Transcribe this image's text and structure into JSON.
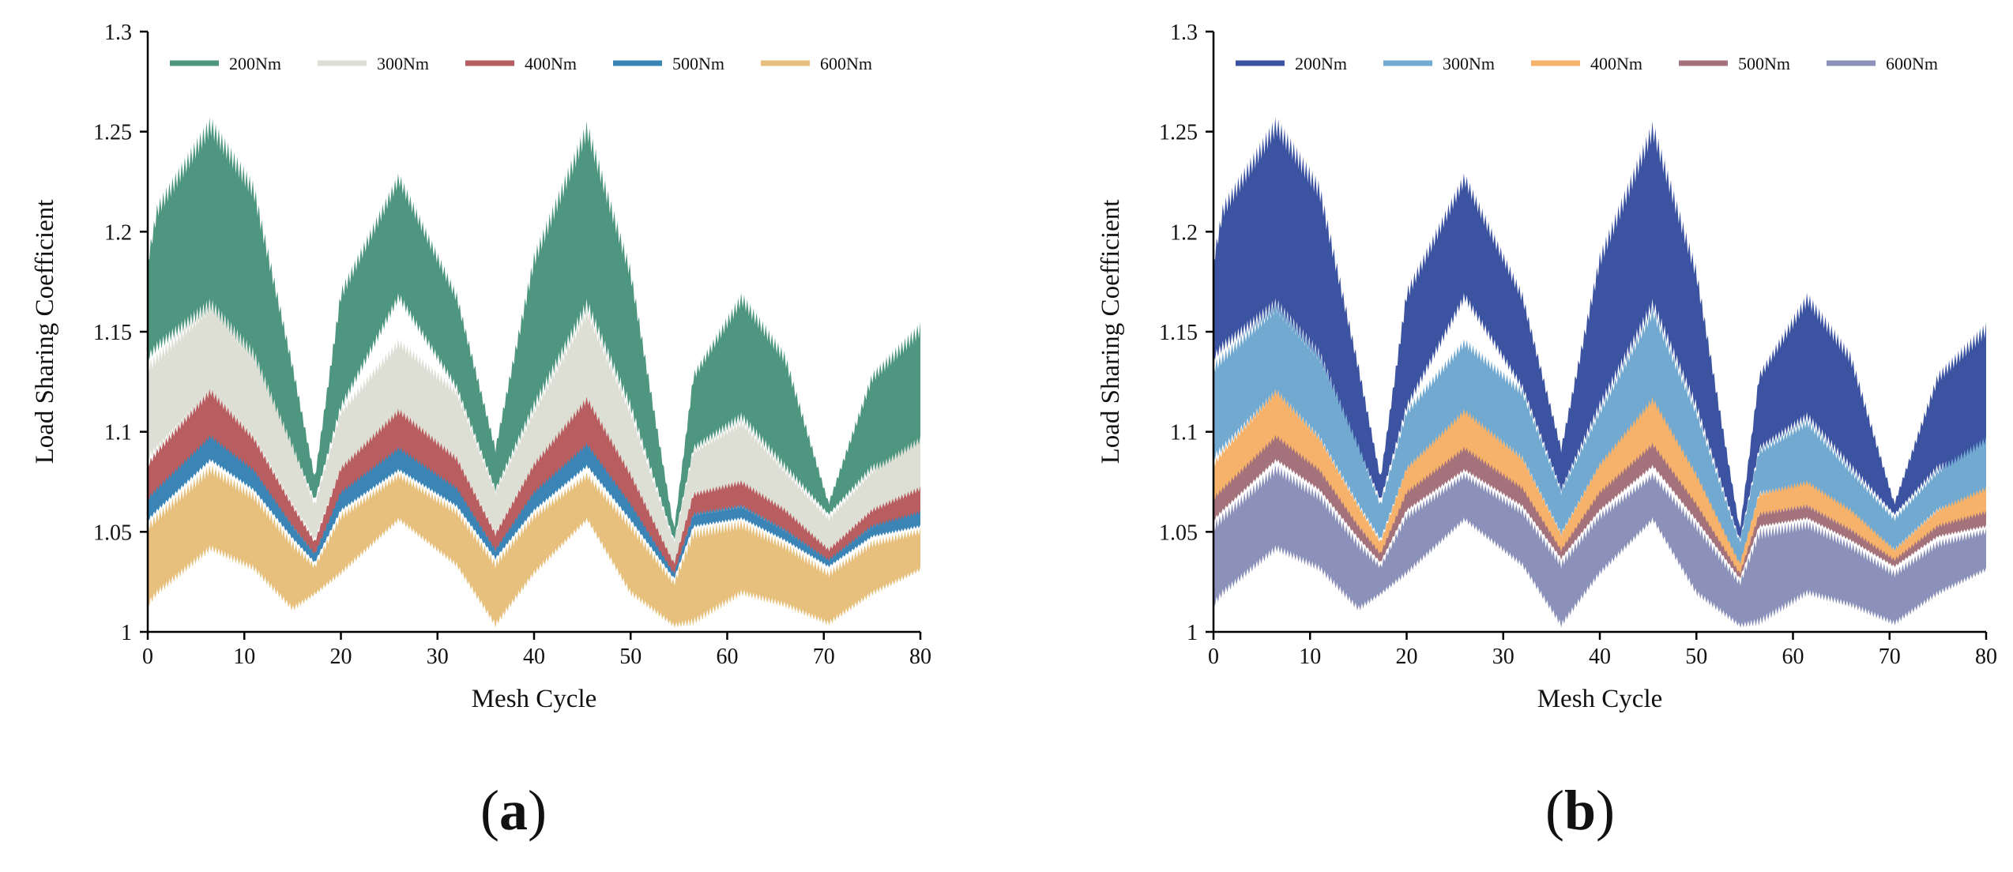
{
  "chart_data": [
    {
      "type": "area",
      "panel_label": "a",
      "xlabel": "Mesh Cycle",
      "ylabel": "Load Sharing Coefficient",
      "xlim": [
        0,
        80
      ],
      "ylim": [
        1,
        1.3
      ],
      "x_ticks": [
        "0",
        "10",
        "20",
        "30",
        "40",
        "50",
        "60",
        "70",
        "80"
      ],
      "y_ticks": [
        "1",
        "1.05",
        "1.1",
        "1.15",
        "1.2",
        "1.25",
        "1.3"
      ],
      "legend_position": "top",
      "bands": [
        {
          "name": "200Nm",
          "color": "#4e9680",
          "x": [
            0,
            1,
            6.5,
            11,
            15,
            17.3,
            20,
            26,
            32,
            36,
            40,
            45.5,
            50,
            54.5,
            56.5,
            61.5,
            66,
            70.5,
            75,
            80
          ],
          "upper": [
            1.188,
            1.215,
            1.258,
            1.225,
            1.135,
            1.078,
            1.172,
            1.23,
            1.17,
            1.093,
            1.19,
            1.256,
            1.183,
            1.052,
            1.13,
            1.17,
            1.14,
            1.065,
            1.13,
            1.155
          ],
          "lower": [
            1.135,
            1.14,
            1.16,
            1.135,
            1.09,
            1.065,
            1.11,
            1.165,
            1.12,
            1.07,
            1.11,
            1.16,
            1.11,
            1.045,
            1.09,
            1.105,
            1.08,
            1.058,
            1.08,
            1.085
          ]
        },
        {
          "name": "300Nm",
          "color": "#dddfd5",
          "x": [
            0,
            1,
            6.5,
            11,
            15,
            17.3,
            20,
            26,
            32,
            36,
            40,
            45.5,
            50,
            54.5,
            56.5,
            61.5,
            66,
            70.5,
            75,
            80
          ],
          "upper": [
            1.135,
            1.14,
            1.165,
            1.14,
            1.095,
            1.065,
            1.112,
            1.147,
            1.122,
            1.072,
            1.112,
            1.163,
            1.112,
            1.046,
            1.092,
            1.107,
            1.082,
            1.058,
            1.082,
            1.098
          ],
          "lower": [
            1.085,
            1.09,
            1.118,
            1.095,
            1.062,
            1.045,
            1.08,
            1.108,
            1.085,
            1.048,
            1.082,
            1.11,
            1.075,
            1.032,
            1.068,
            1.072,
            1.058,
            1.04,
            1.06,
            1.068
          ]
        },
        {
          "name": "400Nm",
          "color": "#b95e60",
          "x": [
            0,
            1,
            6.5,
            11,
            15,
            17.3,
            20,
            26,
            32,
            36,
            40,
            45.5,
            50,
            54.5,
            56.5,
            61.5,
            66,
            70.5,
            75,
            80
          ],
          "upper": [
            1.085,
            1.092,
            1.122,
            1.098,
            1.064,
            1.046,
            1.083,
            1.112,
            1.088,
            1.05,
            1.085,
            1.118,
            1.08,
            1.035,
            1.07,
            1.076,
            1.062,
            1.042,
            1.062,
            1.073
          ],
          "lower": [
            1.065,
            1.07,
            1.095,
            1.078,
            1.052,
            1.038,
            1.068,
            1.09,
            1.07,
            1.04,
            1.068,
            1.092,
            1.062,
            1.028,
            1.058,
            1.062,
            1.05,
            1.035,
            1.052,
            1.058
          ]
        },
        {
          "name": "500Nm",
          "color": "#3a84b6",
          "x": [
            0,
            1,
            6.5,
            11,
            15,
            17.3,
            20,
            26,
            32,
            36,
            40,
            45.5,
            50,
            54.5,
            56.5,
            61.5,
            66,
            70.5,
            75,
            80
          ],
          "upper": [
            1.068,
            1.073,
            1.099,
            1.082,
            1.054,
            1.04,
            1.071,
            1.093,
            1.073,
            1.042,
            1.071,
            1.095,
            1.065,
            1.03,
            1.06,
            1.064,
            1.052,
            1.037,
            1.054,
            1.061
          ],
          "lower": [
            1.055,
            1.06,
            1.085,
            1.07,
            1.046,
            1.034,
            1.06,
            1.08,
            1.062,
            1.036,
            1.06,
            1.082,
            1.055,
            1.026,
            1.052,
            1.056,
            1.045,
            1.032,
            1.047,
            1.052
          ]
        },
        {
          "name": "600Nm",
          "color": "#e6c07c",
          "x": [
            0,
            1,
            6.5,
            11,
            15,
            17.3,
            20,
            26,
            32,
            36,
            40,
            45.5,
            50,
            54.5,
            56.5,
            61.5,
            66,
            70.5,
            75,
            80
          ],
          "upper": [
            1.055,
            1.06,
            1.084,
            1.07,
            1.046,
            1.034,
            1.06,
            1.08,
            1.062,
            1.036,
            1.06,
            1.08,
            1.055,
            1.026,
            1.052,
            1.056,
            1.045,
            1.031,
            1.046,
            1.052
          ],
          "lower": [
            1.012,
            1.018,
            1.04,
            1.03,
            1.01,
            1.018,
            1.028,
            1.055,
            1.032,
            1.002,
            1.028,
            1.055,
            1.018,
            1.002,
            1.003,
            1.018,
            1.012,
            1.003,
            1.018,
            1.03
          ]
        }
      ]
    },
    {
      "type": "area",
      "panel_label": "b",
      "xlabel": "Mesh Cycle",
      "ylabel": "Load Sharing Coefficient",
      "xlim": [
        0,
        80
      ],
      "ylim": [
        1,
        1.3
      ],
      "x_ticks": [
        "0",
        "10",
        "20",
        "30",
        "40",
        "50",
        "60",
        "70",
        "80"
      ],
      "y_ticks": [
        "1",
        "1.05",
        "1.1",
        "1.15",
        "1.2",
        "1.25",
        "1.3"
      ],
      "legend_position": "top",
      "bands": [
        {
          "name": "200Nm",
          "color": "#3b53a1",
          "x": [
            0,
            1,
            6.5,
            11,
            15,
            17.3,
            20,
            26,
            32,
            36,
            40,
            45.5,
            50,
            54.5,
            56.5,
            61.5,
            66,
            70.5,
            75,
            80
          ],
          "upper": [
            1.188,
            1.215,
            1.258,
            1.225,
            1.135,
            1.078,
            1.172,
            1.23,
            1.17,
            1.093,
            1.19,
            1.256,
            1.183,
            1.052,
            1.13,
            1.17,
            1.14,
            1.065,
            1.13,
            1.155
          ],
          "lower": [
            1.135,
            1.14,
            1.16,
            1.135,
            1.09,
            1.065,
            1.11,
            1.165,
            1.12,
            1.07,
            1.11,
            1.16,
            1.11,
            1.045,
            1.09,
            1.105,
            1.08,
            1.058,
            1.08,
            1.085
          ]
        },
        {
          "name": "300Nm",
          "color": "#72a9d0",
          "x": [
            0,
            1,
            6.5,
            11,
            15,
            17.3,
            20,
            26,
            32,
            36,
            40,
            45.5,
            50,
            54.5,
            56.5,
            61.5,
            66,
            70.5,
            75,
            80
          ],
          "upper": [
            1.135,
            1.14,
            1.165,
            1.14,
            1.095,
            1.065,
            1.112,
            1.147,
            1.122,
            1.072,
            1.112,
            1.163,
            1.112,
            1.046,
            1.092,
            1.107,
            1.082,
            1.058,
            1.082,
            1.098
          ],
          "lower": [
            1.085,
            1.09,
            1.118,
            1.095,
            1.062,
            1.045,
            1.08,
            1.108,
            1.085,
            1.048,
            1.082,
            1.11,
            1.075,
            1.032,
            1.068,
            1.072,
            1.058,
            1.04,
            1.06,
            1.068
          ]
        },
        {
          "name": "400Nm",
          "color": "#f6b26b",
          "x": [
            0,
            1,
            6.5,
            11,
            15,
            17.3,
            20,
            26,
            32,
            36,
            40,
            45.5,
            50,
            54.5,
            56.5,
            61.5,
            66,
            70.5,
            75,
            80
          ],
          "upper": [
            1.085,
            1.092,
            1.122,
            1.098,
            1.064,
            1.046,
            1.083,
            1.112,
            1.088,
            1.05,
            1.085,
            1.118,
            1.08,
            1.035,
            1.07,
            1.076,
            1.062,
            1.042,
            1.062,
            1.073
          ],
          "lower": [
            1.065,
            1.07,
            1.095,
            1.078,
            1.052,
            1.038,
            1.068,
            1.09,
            1.07,
            1.04,
            1.068,
            1.092,
            1.062,
            1.028,
            1.058,
            1.062,
            1.05,
            1.035,
            1.052,
            1.058
          ]
        },
        {
          "name": "500Nm",
          "color": "#a4727b",
          "x": [
            0,
            1,
            6.5,
            11,
            15,
            17.3,
            20,
            26,
            32,
            36,
            40,
            45.5,
            50,
            54.5,
            56.5,
            61.5,
            66,
            70.5,
            75,
            80
          ],
          "upper": [
            1.068,
            1.073,
            1.099,
            1.082,
            1.054,
            1.04,
            1.071,
            1.093,
            1.073,
            1.042,
            1.071,
            1.095,
            1.065,
            1.03,
            1.06,
            1.064,
            1.052,
            1.037,
            1.054,
            1.061
          ],
          "lower": [
            1.055,
            1.06,
            1.085,
            1.07,
            1.046,
            1.034,
            1.06,
            1.08,
            1.062,
            1.036,
            1.06,
            1.082,
            1.055,
            1.026,
            1.052,
            1.056,
            1.045,
            1.032,
            1.047,
            1.052
          ]
        },
        {
          "name": "600Nm",
          "color": "#8b91b9",
          "x": [
            0,
            1,
            6.5,
            11,
            15,
            17.3,
            20,
            26,
            32,
            36,
            40,
            45.5,
            50,
            54.5,
            56.5,
            61.5,
            66,
            70.5,
            75,
            80
          ],
          "upper": [
            1.055,
            1.06,
            1.084,
            1.07,
            1.046,
            1.034,
            1.06,
            1.08,
            1.062,
            1.036,
            1.06,
            1.08,
            1.055,
            1.026,
            1.052,
            1.056,
            1.045,
            1.031,
            1.046,
            1.052
          ],
          "lower": [
            1.012,
            1.018,
            1.04,
            1.03,
            1.01,
            1.018,
            1.028,
            1.055,
            1.032,
            1.002,
            1.028,
            1.055,
            1.018,
            1.002,
            1.003,
            1.018,
            1.012,
            1.003,
            1.018,
            1.03
          ]
        }
      ]
    }
  ]
}
